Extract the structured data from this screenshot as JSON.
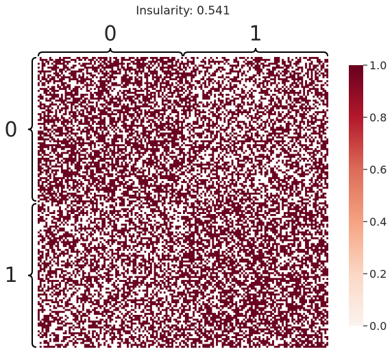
{
  "chart_data": {
    "type": "heatmap",
    "title": "Insularity: 0.541",
    "xlabel": "",
    "ylabel": "",
    "rows": 2,
    "cols": 2,
    "row_groups": [
      "0",
      "1"
    ],
    "col_groups": [
      "0",
      "1"
    ],
    "block_density": [
      [
        0.6,
        0.5
      ],
      [
        0.5,
        0.6
      ]
    ],
    "value_range": [
      0,
      1
    ],
    "colorbar": {
      "ticks": [
        0,
        0.2,
        0.4,
        0.6,
        0.8,
        1
      ],
      "tick_labels": [
        "0.0",
        "0.2",
        "0.4",
        "0.6",
        "0.8",
        "1.0"
      ],
      "colormap": "RdBu_r (light to dark red)",
      "min_color": "#fbeee8",
      "max_color": "#67001f"
    },
    "grid": false,
    "cell_color_on": "#6a0520",
    "cell_color_off": "#ffffff"
  }
}
